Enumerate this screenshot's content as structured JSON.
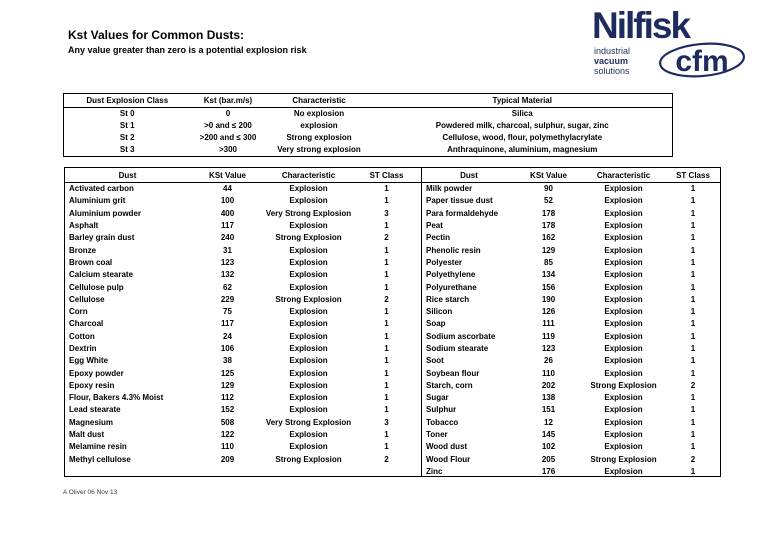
{
  "page": {
    "title": "Kst Values for Common Dusts:",
    "subtitle": "Any value greater than zero is a potential explosion risk",
    "footer": "A Oliver  06 Nov 13"
  },
  "logo": {
    "brand": "Nilfisk",
    "sub_brand": "cfm",
    "tagline_lines": [
      "industrial",
      "vacuum",
      "solutions"
    ],
    "color": "#1e2b5e"
  },
  "class_table": {
    "headers": [
      "Dust Explosion Class",
      "Kst (bar.m/s)",
      "Characteristic",
      "Typical Material"
    ],
    "rows": [
      [
        "St 0",
        "0",
        "No explosion",
        "Silica"
      ],
      [
        "St 1",
        ">0 and ≤ 200",
        "explosion",
        "Powdered milk, charcoal, sulphur, sugar, zinc"
      ],
      [
        "St 2",
        ">200 and ≤ 300",
        "Strong explosion",
        "Cellulose, wood, flour, polymethylacrylate"
      ],
      [
        "St 3",
        ">300",
        "Very strong explosion",
        "Anthraquinone, aluminium, magnesium"
      ]
    ]
  },
  "dust_table": {
    "headers": [
      "Dust",
      "KSt Value",
      "Characteristic",
      "ST Class"
    ],
    "left_rows": [
      [
        "Activated carbon",
        "44",
        "Explosion",
        "1"
      ],
      [
        "Aluminium grit",
        "100",
        "Explosion",
        "1"
      ],
      [
        "Aluminium powder",
        "400",
        "Very Strong Explosion",
        "3"
      ],
      [
        "Asphalt",
        "117",
        "Explosion",
        "1"
      ],
      [
        "Barley grain dust",
        "240",
        "Strong Explosion",
        "2"
      ],
      [
        "Bronze",
        "31",
        "Explosion",
        "1"
      ],
      [
        "Brown coal",
        "123",
        "Explosion",
        "1"
      ],
      [
        "Calcium stearate",
        "132",
        "Explosion",
        "1"
      ],
      [
        "Cellulose pulp",
        "62",
        "Explosion",
        "1"
      ],
      [
        "Cellulose",
        "229",
        "Strong Explosion",
        "2"
      ],
      [
        "Corn",
        "75",
        "Explosion",
        "1"
      ],
      [
        "Charcoal",
        "117",
        "Explosion",
        "1"
      ],
      [
        "Cotton",
        "24",
        "Explosion",
        "1"
      ],
      [
        "Dextrin",
        "106",
        "Explosion",
        "1"
      ],
      [
        "Egg White",
        "38",
        "Explosion",
        "1"
      ],
      [
        "Epoxy powder",
        "125",
        "Explosion",
        "1"
      ],
      [
        "Epoxy resin",
        "129",
        "Explosion",
        "1"
      ],
      [
        "Flour, Bakers 4.3% Moist",
        "112",
        "Explosion",
        "1"
      ],
      [
        "Lead stearate",
        "152",
        "Explosion",
        "1"
      ],
      [
        "Magnesium",
        "508",
        "Very Strong Explosion",
        "3"
      ],
      [
        "Malt dust",
        "122",
        "Explosion",
        "1"
      ],
      [
        "Melamine resin",
        "110",
        "Explosion",
        "1"
      ],
      [
        "Methyl cellulose",
        "209",
        "Strong Explosion",
        "2"
      ]
    ],
    "right_rows": [
      [
        "Milk powder",
        "90",
        "Explosion",
        "1"
      ],
      [
        "Paper tissue dust",
        "52",
        "Explosion",
        "1"
      ],
      [
        "Para formaldehyde",
        "178",
        "Explosion",
        "1"
      ],
      [
        "Peat",
        "178",
        "Explosion",
        "1"
      ],
      [
        "Pectin",
        "162",
        "Explosion",
        "1"
      ],
      [
        "Phenolic resin",
        "129",
        "Explosion",
        "1"
      ],
      [
        "Polyester",
        "85",
        "Explosion",
        "1"
      ],
      [
        "Polyethylene",
        "134",
        "Explosion",
        "1"
      ],
      [
        "Polyurethane",
        "156",
        "Explosion",
        "1"
      ],
      [
        "Rice starch",
        "190",
        "Explosion",
        "1"
      ],
      [
        "Silicon",
        "126",
        "Explosion",
        "1"
      ],
      [
        "Soap",
        "111",
        "Explosion",
        "1"
      ],
      [
        "Sodium ascorbate",
        "119",
        "Explosion",
        "1"
      ],
      [
        "Sodium stearate",
        "123",
        "Explosion",
        "1"
      ],
      [
        "Soot",
        "26",
        "Explosion",
        "1"
      ],
      [
        "Soybean flour",
        "110",
        "Explosion",
        "1"
      ],
      [
        "Starch, corn",
        "202",
        "Strong Explosion",
        "2"
      ],
      [
        "Sugar",
        "138",
        "Explosion",
        "1"
      ],
      [
        "Sulphur",
        "151",
        "Explosion",
        "1"
      ],
      [
        "Tobacco",
        "12",
        "Explosion",
        "1"
      ],
      [
        "Toner",
        "145",
        "Explosion",
        "1"
      ],
      [
        "Wood dust",
        "102",
        "Explosion",
        "1"
      ],
      [
        "Wood Flour",
        "205",
        "Strong Explosion",
        "2"
      ],
      [
        "Zinc",
        "176",
        "Explosion",
        "1"
      ]
    ]
  }
}
